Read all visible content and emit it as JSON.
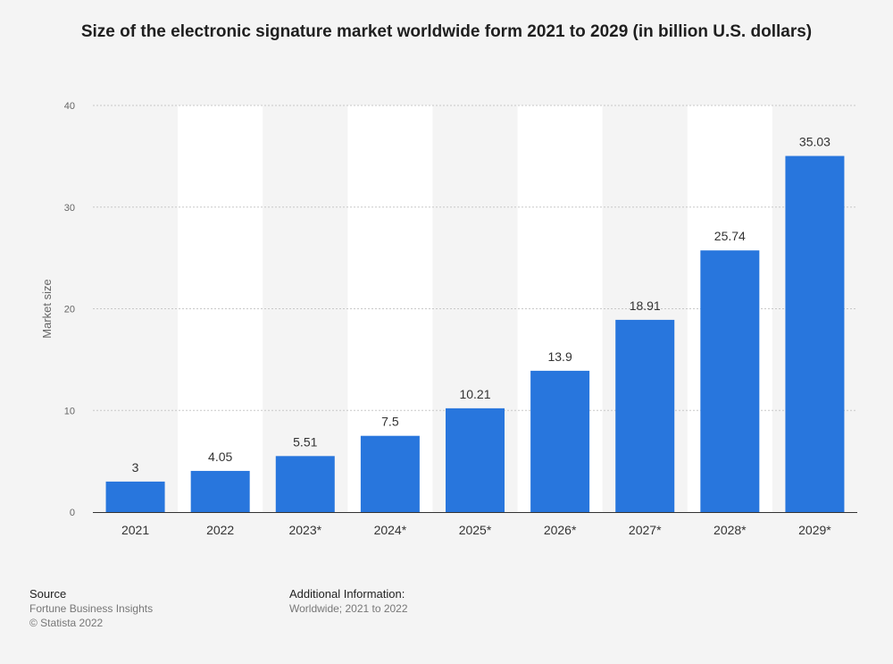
{
  "chart_data": {
    "type": "bar",
    "title": "Size of the electronic signature market worldwide form 2021 to 2029 (in billion U.S. dollars)",
    "xlabel": "",
    "ylabel": "Market size",
    "categories": [
      "2021",
      "2022",
      "2023*",
      "2024*",
      "2025*",
      "2026*",
      "2027*",
      "2028*",
      "2029*"
    ],
    "values": [
      3,
      4.05,
      5.51,
      7.5,
      10.21,
      13.9,
      18.91,
      25.74,
      35.03
    ],
    "value_labels": [
      "3",
      "4.05",
      "5.51",
      "7.5",
      "10.21",
      "13.9",
      "18.91",
      "25.74",
      "35.03"
    ],
    "ylim": [
      0,
      40
    ],
    "yticks": [
      0,
      10,
      20,
      30,
      40
    ],
    "grid": true,
    "bar_color": "#2876dd",
    "band_color": "#ffffff"
  },
  "footer": {
    "source_heading": "Source",
    "source_name": "Fortune Business Insights",
    "copyright": "© Statista 2022",
    "additional_heading": "Additional Information:",
    "additional_text": "Worldwide; 2021 to 2022"
  }
}
